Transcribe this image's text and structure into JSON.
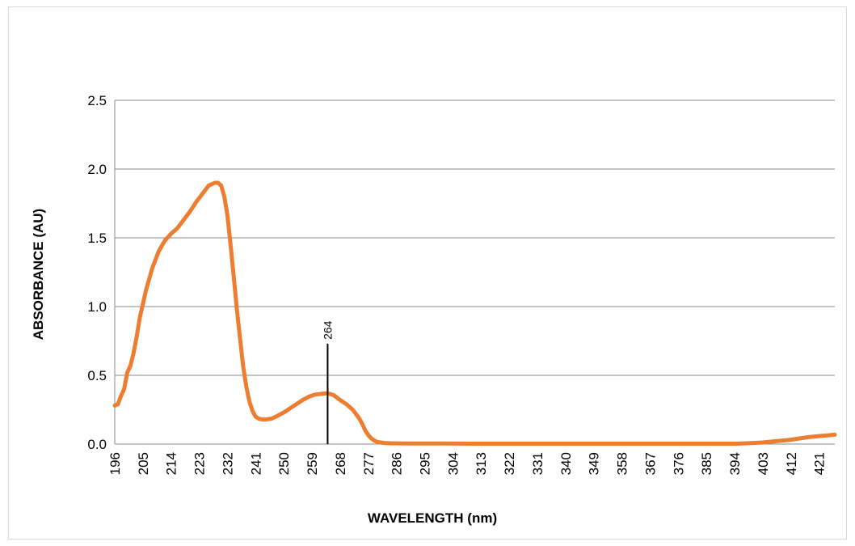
{
  "chart_data": {
    "type": "line",
    "title": "",
    "xlabel": "WAVELENGTH (nm)",
    "ylabel": "ABSORBANCE (AU)",
    "xlim": [
      196,
      426
    ],
    "ylim": [
      0,
      2.5
    ],
    "x_ticks": [
      "196",
      "205",
      "214",
      "223",
      "232",
      "241",
      "250",
      "259",
      "268",
      "277",
      "286",
      "295",
      "304",
      "313",
      "322",
      "331",
      "340",
      "349",
      "358",
      "367",
      "376",
      "385",
      "394",
      "403",
      "412",
      "421"
    ],
    "y_ticks": [
      "0.0",
      "0.5",
      "1.0",
      "1.5",
      "2.0",
      "2.5"
    ],
    "grid": "horizontal",
    "legend": "none",
    "colors": {
      "series": "#ED7D31",
      "grid": "#888888",
      "annotation": "#000000"
    },
    "series": [
      {
        "x": [
          196,
          197,
          198,
          199,
          200,
          201,
          202,
          203,
          204,
          205,
          206,
          208,
          210,
          212,
          214,
          216,
          218,
          220,
          222,
          224,
          226,
          228,
          229,
          230,
          231,
          232,
          233,
          234,
          235,
          236,
          237,
          238,
          239,
          240,
          241,
          242,
          243,
          244,
          246,
          248,
          250,
          252,
          254,
          256,
          258,
          260,
          262,
          264,
          266,
          268,
          270,
          272,
          274,
          275,
          276,
          277,
          278,
          279,
          280,
          282,
          284,
          286,
          290,
          295,
          300,
          310,
          320,
          340,
          360,
          380,
          390,
          395,
          400,
          403,
          406,
          409,
          412,
          415,
          418,
          421,
          424,
          426
        ],
        "y": [
          0.28,
          0.29,
          0.35,
          0.4,
          0.52,
          0.57,
          0.66,
          0.78,
          0.92,
          1.02,
          1.12,
          1.28,
          1.4,
          1.48,
          1.53,
          1.57,
          1.63,
          1.69,
          1.76,
          1.82,
          1.88,
          1.9,
          1.9,
          1.88,
          1.8,
          1.66,
          1.45,
          1.22,
          0.98,
          0.77,
          0.57,
          0.42,
          0.31,
          0.24,
          0.2,
          0.185,
          0.18,
          0.178,
          0.185,
          0.205,
          0.23,
          0.26,
          0.29,
          0.32,
          0.345,
          0.36,
          0.365,
          0.37,
          0.355,
          0.32,
          0.29,
          0.25,
          0.19,
          0.15,
          0.1,
          0.065,
          0.04,
          0.025,
          0.015,
          0.008,
          0.006,
          0.005,
          0.004,
          0.004,
          0.004,
          0.003,
          0.003,
          0.003,
          0.003,
          0.003,
          0.003,
          0.003,
          0.008,
          0.012,
          0.018,
          0.025,
          0.032,
          0.042,
          0.052,
          0.058,
          0.064,
          0.068
        ]
      }
    ],
    "annotations": [
      {
        "x": 264,
        "label": "264",
        "y_top": 0.73
      }
    ]
  }
}
